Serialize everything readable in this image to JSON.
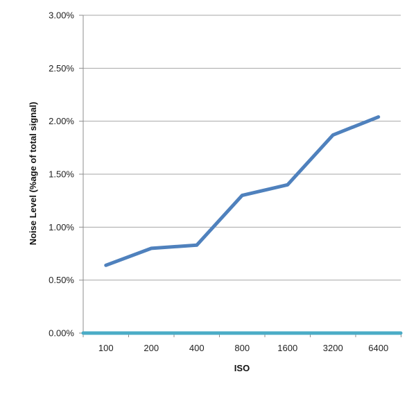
{
  "chart_data": {
    "type": "line",
    "title": "",
    "xlabel": "ISO",
    "ylabel": "Noise Level (%age of total signal)",
    "categories": [
      "100",
      "200",
      "400",
      "800",
      "1600",
      "3200",
      "6400"
    ],
    "y_ticks": [
      "0.00%",
      "0.50%",
      "1.00%",
      "1.50%",
      "2.00%",
      "2.50%",
      "3.00%"
    ],
    "ylim": [
      0,
      3.0
    ],
    "y_unit": "%",
    "grid": true,
    "legend": "none",
    "series": [
      {
        "values": [
          0.64,
          0.8,
          0.83,
          1.3,
          1.4,
          1.87,
          2.04
        ],
        "color": "#4F81BD"
      },
      {
        "values": [
          0,
          0,
          0,
          0,
          0,
          0,
          0
        ],
        "color": "#4BACC6"
      }
    ]
  }
}
